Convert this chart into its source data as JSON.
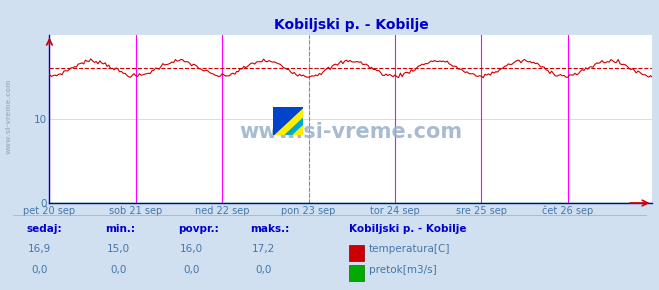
{
  "title": "Kobiljski p. - Kobilje",
  "title_color": "#0000cc",
  "bg_color": "#d0e0f0",
  "plot_bg_color": "#ffffff",
  "grid_color": "#cccccc",
  "ylim": [
    0,
    20
  ],
  "yticks": [
    0,
    10
  ],
  "xlabel_color": "#4477aa",
  "x_labels": [
    "pet 20 sep",
    "sob 21 sep",
    "ned 22 sep",
    "pon 23 sep",
    "tor 24 sep",
    "sre 25 sep",
    "čet 26 sep"
  ],
  "x_label_color": "#4477aa",
  "avg_line_value": 16.0,
  "avg_line_color": "#cc0000",
  "temp_line_color": "#cc0000",
  "flow_line_color": "#00aa00",
  "magenta_vline_color": "#ff00ff",
  "dark_vline_color": "#888888",
  "axis_color": "#0000cc",
  "arrow_color": "#cc0000",
  "watermark_text_color": "#aabbcc",
  "legend_title": "Kobiljski p. - Kobilje",
  "legend_title_color": "#0000cc",
  "legend_label1": "temperatura[C]",
  "legend_label2": "pretok[m3/s]",
  "footer_label_color": "#4477aa",
  "footer_bold_color": "#0000cc",
  "footer_headers": [
    "sedaj:",
    "min.:",
    "povpr.:",
    "maks.:"
  ],
  "footer_vals_temp": [
    "16,9",
    "15,0",
    "16,0",
    "17,2"
  ],
  "footer_vals_flow": [
    "0,0",
    "0,0",
    "0,0",
    "0,0"
  ],
  "n_points": 336,
  "temp_min": 15.0,
  "temp_max": 17.2,
  "temp_avg": 16.0,
  "magenta_vline_positions": [
    0,
    48,
    96,
    192,
    240,
    288
  ],
  "dark_vline_positions": [
    144
  ],
  "ylabel_side_text": "www.si-vreme.com",
  "watermark_text": "www.si-vreme.com"
}
